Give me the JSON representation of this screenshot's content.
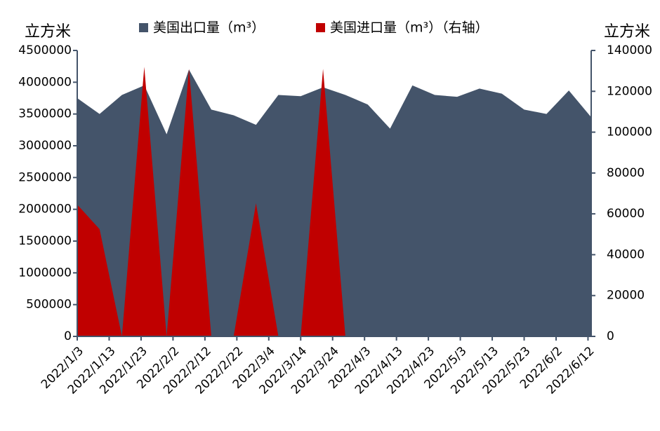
{
  "chart_data": {
    "type": "area",
    "y_label": "立方米",
    "y2_label": "立方米",
    "x": [
      "2022/1/3",
      "2022/1/10",
      "2022/1/17",
      "2022/1/24",
      "2022/1/31",
      "2022/2/7",
      "2022/2/14",
      "2022/2/21",
      "2022/2/28",
      "2022/3/7",
      "2022/3/14",
      "2022/3/21",
      "2022/3/28",
      "2022/4/4",
      "2022/4/11",
      "2022/4/18",
      "2022/4/25",
      "2022/5/2",
      "2022/5/9",
      "2022/5/16",
      "2022/5/23",
      "2022/5/30",
      "2022/6/6",
      "2022/6/13"
    ],
    "xlim": [
      "2022/1/3",
      "2022/6/13"
    ],
    "xticks": [
      "2022/1/3",
      "2022/1/13",
      "2022/1/23",
      "2022/2/2",
      "2022/2/12",
      "2022/2/22",
      "2022/3/4",
      "2022/3/14",
      "2022/3/24",
      "2022/4/3",
      "2022/4/13",
      "2022/4/23",
      "2022/5/3",
      "2022/5/13",
      "2022/5/23",
      "2022/6/2",
      "2022/6/12"
    ],
    "series": [
      {
        "name": "美国出口量（m³）",
        "color": "#44546a",
        "values": [
          3750000,
          3500000,
          3800000,
          3950000,
          3180000,
          4200000,
          3570000,
          3480000,
          3330000,
          3800000,
          3780000,
          3920000,
          3800000,
          3650000,
          3270000,
          3950000,
          3800000,
          3770000,
          3900000,
          3820000,
          3570000,
          3500000,
          3870000,
          3450000
        ]
      },
      {
        "name": "美国进口量（m³）（右轴）",
        "color": "#c00000",
        "axis": "y2",
        "values": [
          64500,
          52500,
          0,
          132000,
          0,
          131000,
          0,
          0,
          65200,
          0,
          0,
          131000,
          0,
          null,
          null,
          null,
          null,
          null,
          null,
          null,
          null,
          null,
          null,
          null
        ]
      }
    ],
    "ylim": [
      0,
      4500000
    ],
    "yticks": [
      0,
      500000,
      1000000,
      1500000,
      2000000,
      2500000,
      3000000,
      3500000,
      4000000,
      4500000
    ],
    "y2lim": [
      0,
      140000
    ],
    "y2ticks": [
      0,
      20000,
      40000,
      60000,
      80000,
      100000,
      120000,
      140000
    ]
  }
}
